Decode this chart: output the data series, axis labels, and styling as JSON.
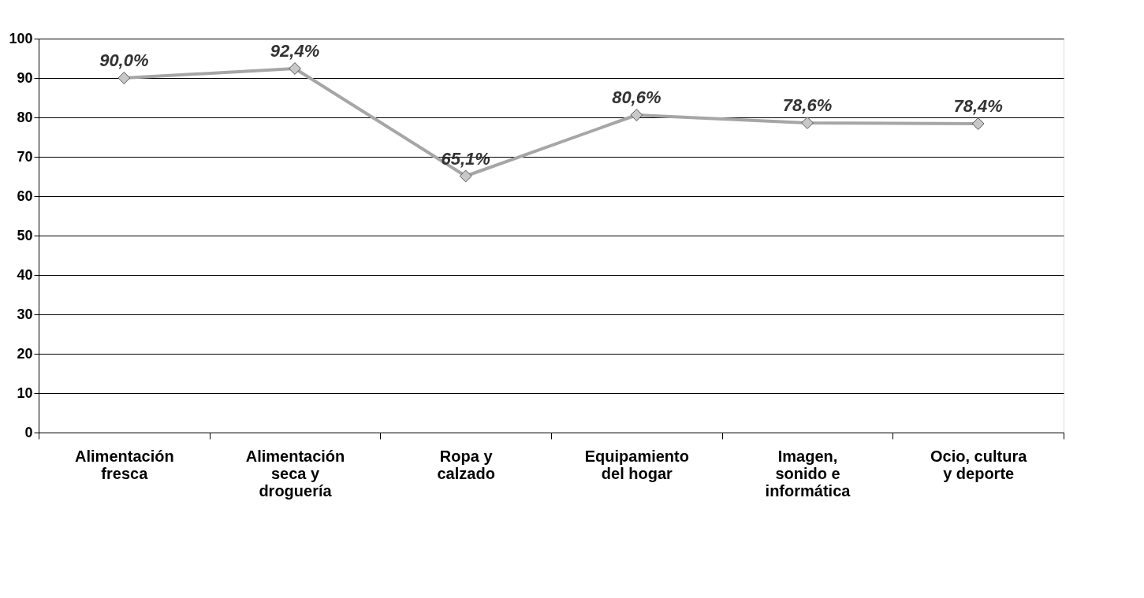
{
  "chart_data": {
    "type": "line",
    "categories": [
      "Alimentación\nfresca",
      "Alimentación\nseca y\ndroguería",
      "Ropa y\ncalzado",
      "Equipamiento\ndel hogar",
      "Imagen,\nsonido e\ninformática",
      "Ocio, cultura\ny deporte"
    ],
    "series": [
      {
        "color": "#a6a6a6",
        "values": [
          90.0,
          92.4,
          65.1,
          80.6,
          78.6,
          78.4
        ],
        "value_labels": [
          "90,0%",
          "92,4%",
          "65,1%",
          "80,6%",
          "78,6%",
          "78,4%"
        ]
      }
    ],
    "ylim": [
      0,
      100
    ],
    "yticks": [
      0,
      10,
      20,
      30,
      40,
      50,
      60,
      70,
      80,
      90,
      100
    ],
    "grid": "y",
    "marker": "diamond",
    "line_style": "solid"
  }
}
